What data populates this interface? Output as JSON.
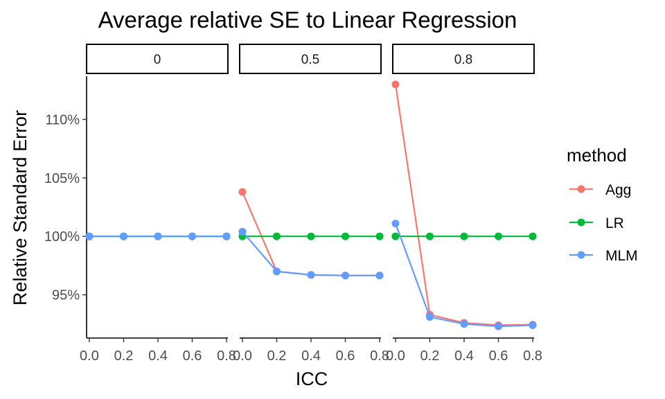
{
  "chart_data": {
    "type": "line",
    "title": "Average relative SE to Linear Regression",
    "xlabel": "ICC",
    "ylabel": "Relative Standard Error",
    "x": [
      0.0,
      0.2,
      0.4,
      0.6,
      0.8
    ],
    "x_tick_labels": [
      "0.0",
      "0.2",
      "0.4",
      "0.6",
      "0.8"
    ],
    "ylim": [
      91.3,
      113.7
    ],
    "y_ticks": [
      95,
      100,
      105,
      110
    ],
    "y_tick_labels": [
      "95%",
      "100%",
      "105%",
      "110%"
    ],
    "legend": {
      "title": "method",
      "position": "right"
    },
    "series_colors": {
      "Agg": "#F8766D",
      "LR": "#00BA38",
      "MLM": "#619CFF"
    },
    "facets": [
      {
        "label": "0",
        "series": [
          {
            "name": "Agg",
            "values": [
              100,
              100,
              100,
              100,
              100
            ]
          },
          {
            "name": "LR",
            "values": [
              100,
              100,
              100,
              100,
              100
            ]
          },
          {
            "name": "MLM",
            "values": [
              100,
              100,
              100,
              100,
              100
            ]
          }
        ]
      },
      {
        "label": "0.5",
        "series": [
          {
            "name": "Agg",
            "values": [
              103.8,
              97.0,
              96.7,
              96.65,
              96.65
            ]
          },
          {
            "name": "LR",
            "values": [
              100,
              100,
              100,
              100,
              100
            ]
          },
          {
            "name": "MLM",
            "values": [
              100.4,
              97.0,
              96.7,
              96.65,
              96.65
            ]
          }
        ]
      },
      {
        "label": "0.8",
        "series": [
          {
            "name": "Agg",
            "values": [
              113.0,
              93.3,
              92.6,
              92.4,
              92.45
            ]
          },
          {
            "name": "LR",
            "values": [
              100,
              100,
              100,
              100,
              100
            ]
          },
          {
            "name": "MLM",
            "values": [
              101.1,
              93.1,
              92.5,
              92.3,
              92.4
            ]
          }
        ]
      }
    ]
  }
}
